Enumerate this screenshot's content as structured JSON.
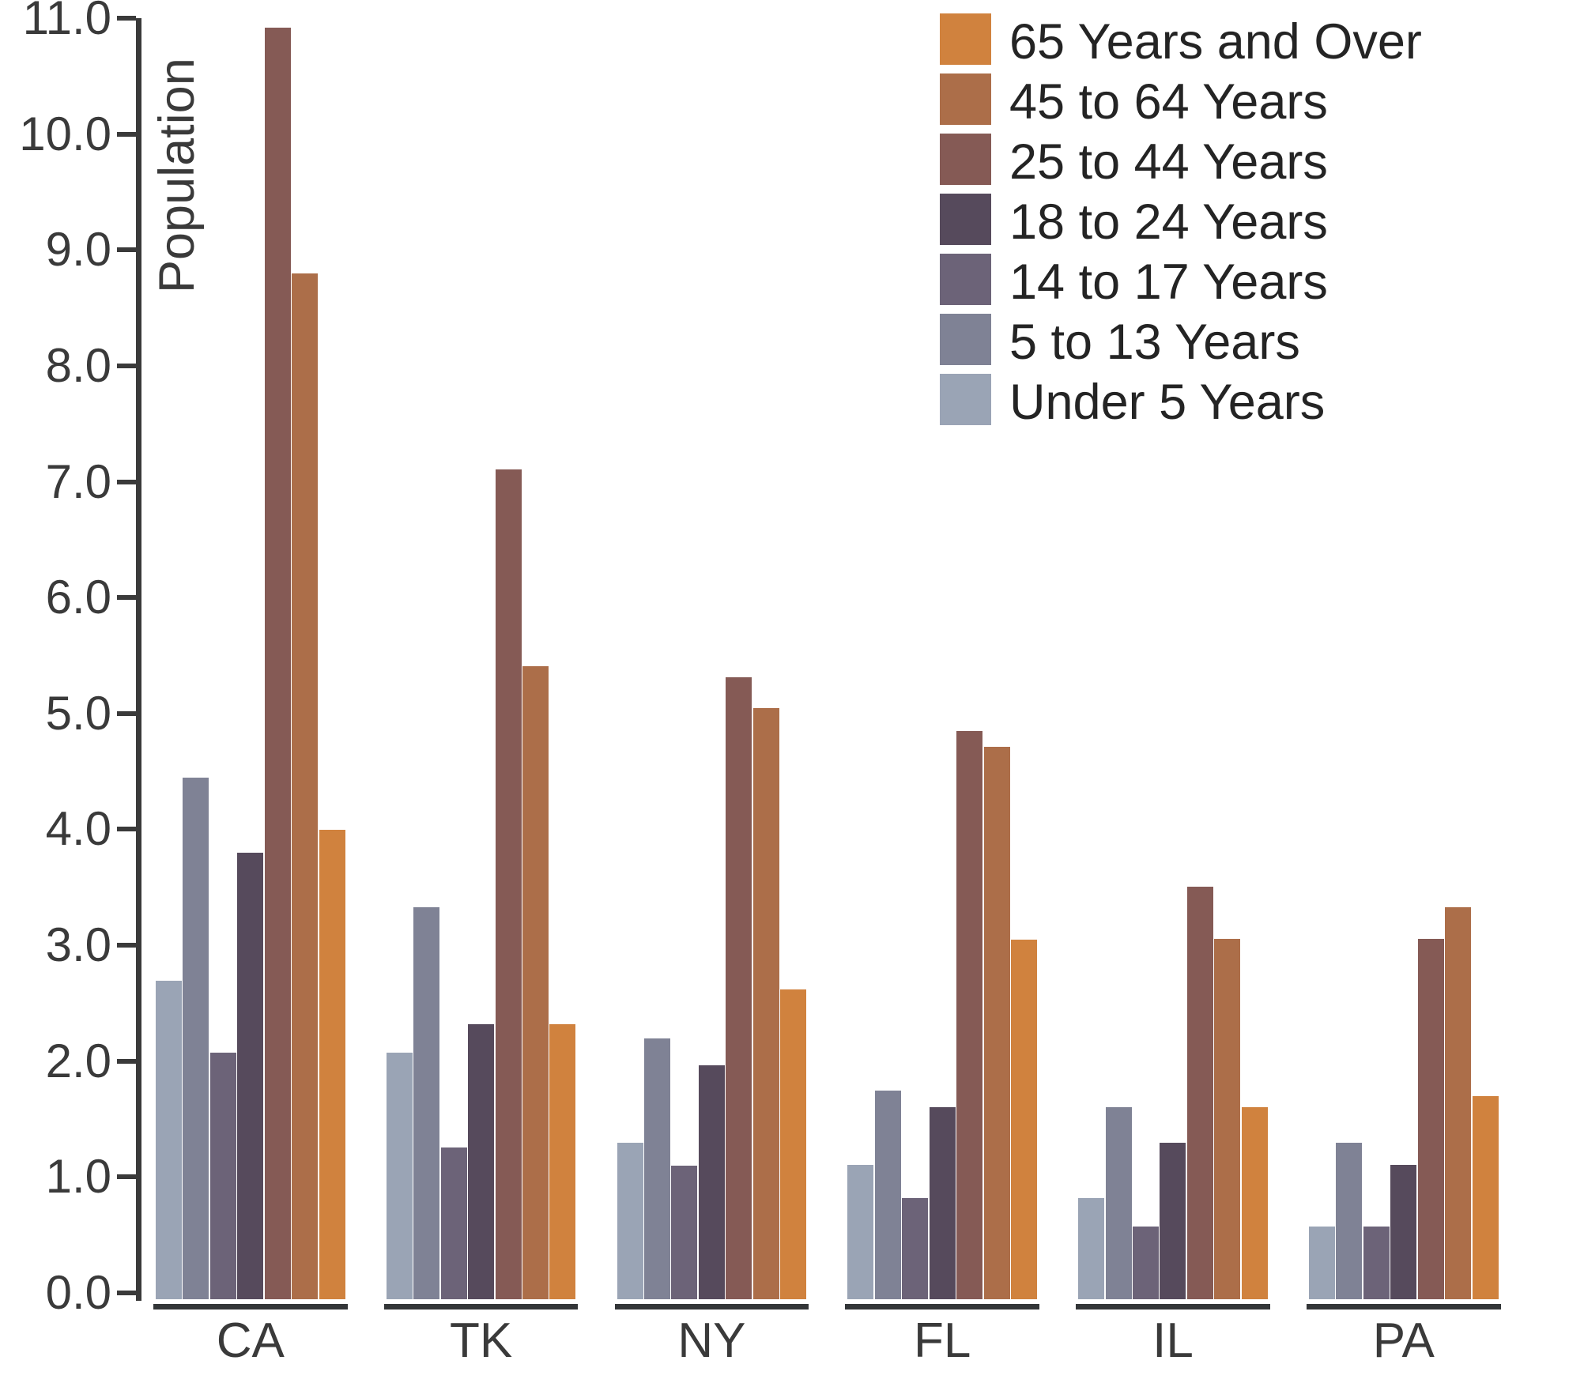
{
  "chart_data": {
    "type": "bar",
    "title": "",
    "xlabel": "",
    "ylabel": "Population",
    "categories": [
      "CA",
      "TK",
      "NY",
      "FL",
      "IL",
      "PA"
    ],
    "series": [
      {
        "name": "Under 5 Years",
        "color": "#9AA4B5",
        "values": [
          2.75,
          2.13,
          1.35,
          1.16,
          0.87,
          0.63
        ]
      },
      {
        "name": "5 to 13 Years",
        "color": "#7F8295",
        "values": [
          4.5,
          3.38,
          2.25,
          1.8,
          1.66,
          1.35
        ]
      },
      {
        "name": "14 to 17 Years",
        "color": "#6C6378",
        "values": [
          2.13,
          1.31,
          1.15,
          0.87,
          0.63,
          0.63
        ]
      },
      {
        "name": "18 to 24 Years",
        "color": "#564A5C",
        "values": [
          3.85,
          2.37,
          2.02,
          1.66,
          1.35,
          1.16
        ]
      },
      {
        "name": "25 to 44 Years",
        "color": "#855A55",
        "values": [
          10.97,
          7.16,
          5.37,
          4.9,
          3.56,
          3.11
        ]
      },
      {
        "name": "45 to 64 Years",
        "color": "#AC6E49",
        "values": [
          8.85,
          5.46,
          5.1,
          4.77,
          3.11,
          3.38
        ]
      },
      {
        "name": "65 Years and Over",
        "color": "#D0823E",
        "values": [
          4.05,
          2.37,
          2.67,
          3.1,
          1.66,
          1.75
        ]
      }
    ],
    "legend_order_top_to_bottom": [
      "65 Years and Over",
      "45 to 64 Years",
      "25 to 44 Years",
      "18 to 24 Years",
      "14 to 17 Years",
      "5 to 13 Years",
      "Under 5 Years"
    ],
    "y_ticks": [
      "0.0",
      "1.0",
      "2.0",
      "3.0",
      "4.0",
      "5.0",
      "6.0",
      "7.0",
      "8.0",
      "9.0",
      "10.0",
      "11.0"
    ],
    "ylim": [
      0,
      11
    ],
    "grid": false,
    "legend_position": "top-right"
  },
  "colors": {
    "axis": "#3a3a3a",
    "tick_text": "#3a3a3a",
    "category_text": "#3a3a3a",
    "legend_text": "#242424",
    "baseline": "#333638",
    "background": "#ffffff"
  }
}
